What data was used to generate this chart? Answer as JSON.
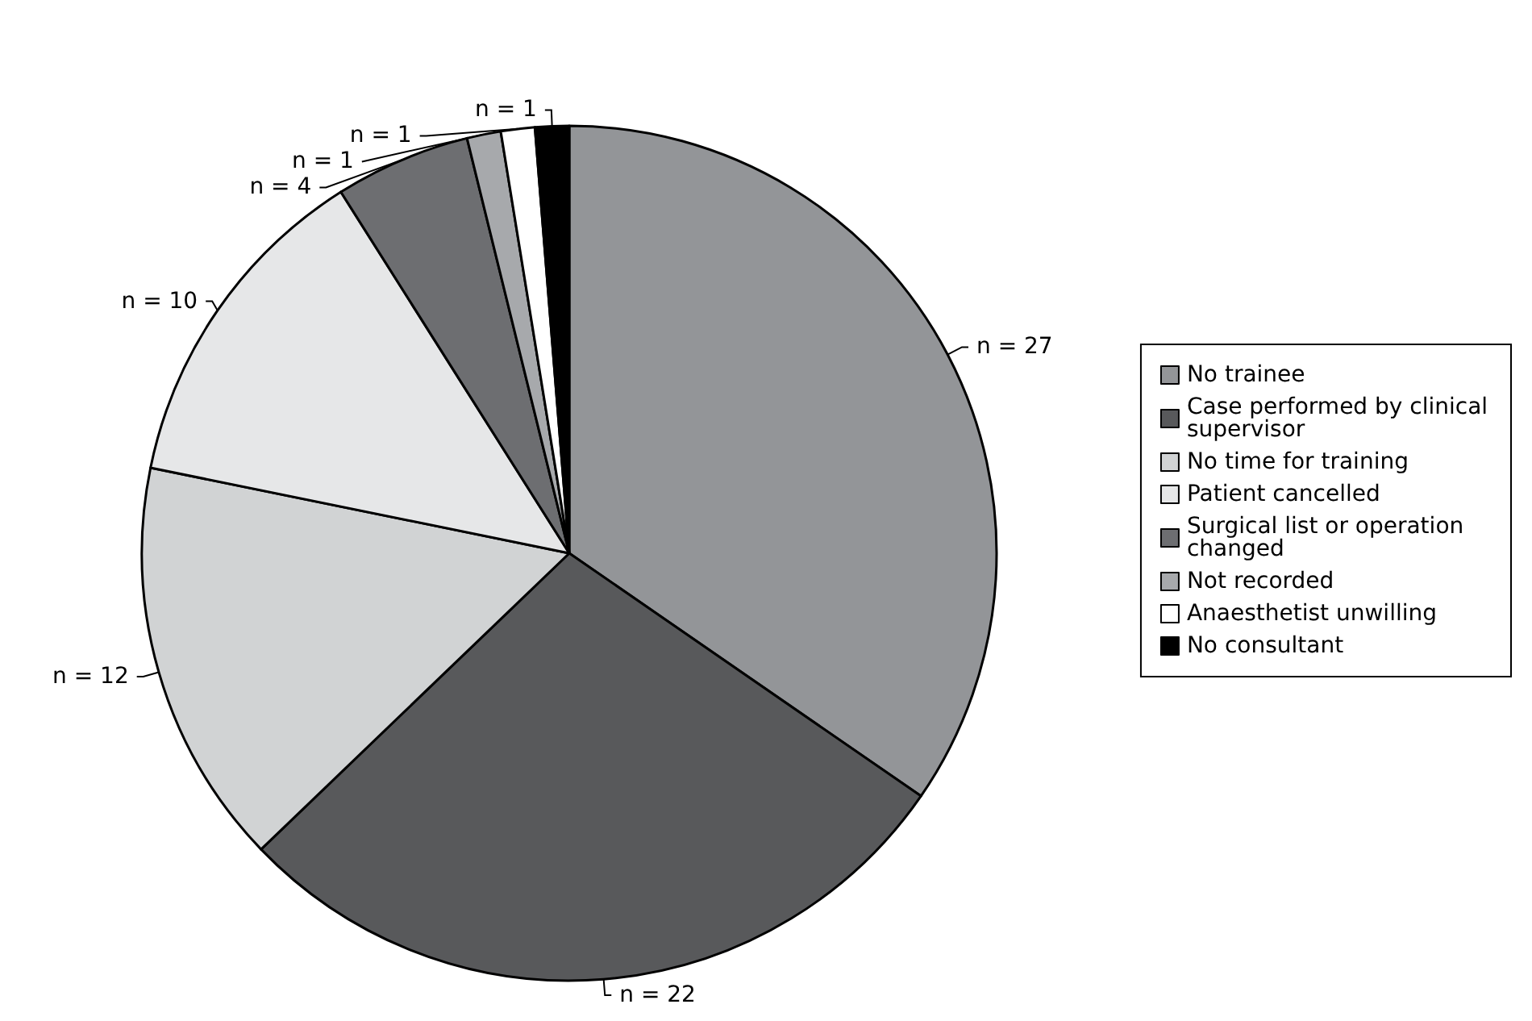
{
  "chart_data": {
    "type": "pie",
    "categories": [
      "No trainee",
      "Case performed by clinical supervisor",
      "No time for training",
      "Patient cancelled",
      "Surgical list or operation changed",
      "Not recorded",
      "Anaesthetist unwilling",
      "No consultant"
    ],
    "values": [
      27,
      22,
      12,
      10,
      4,
      1,
      1,
      1
    ],
    "value_labels": [
      "n = 27",
      "n = 22",
      "n = 12",
      "n = 10",
      "n = 4",
      "n = 1",
      "n = 1",
      "n = 1"
    ],
    "colors": [
      "#939598",
      "#58595b",
      "#d1d3d4",
      "#e6e7e8",
      "#6d6e71",
      "#a7a9ac",
      "#ffffff",
      "#000000"
    ],
    "legend": "right"
  }
}
